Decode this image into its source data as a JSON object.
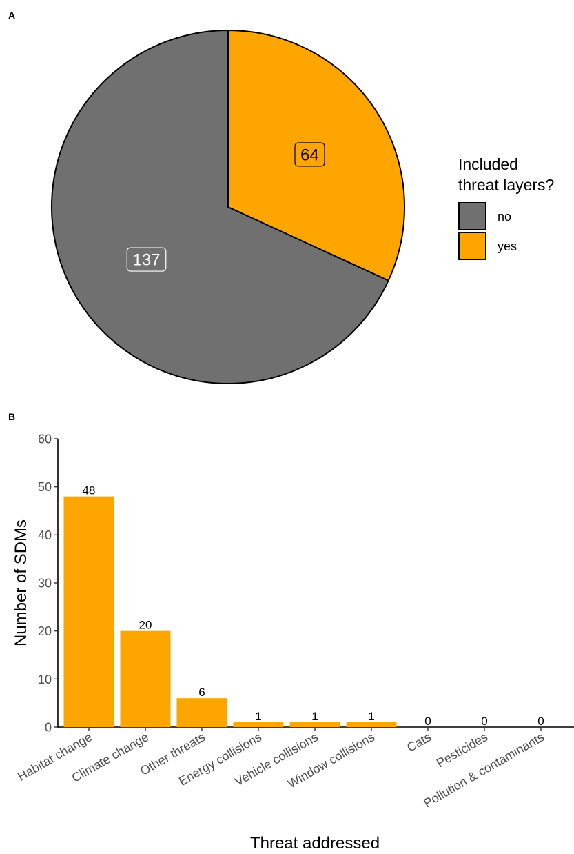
{
  "panel_a": {
    "tag": "A"
  },
  "panel_b": {
    "tag": "B"
  },
  "legend": {
    "title_line1": "Included",
    "title_line2": "threat layers?",
    "items": [
      {
        "label": "no",
        "color": "#707070"
      },
      {
        "label": "yes",
        "color": "#FFA500"
      }
    ]
  },
  "chart_data": [
    {
      "type": "pie",
      "title": "",
      "categories": [
        "no",
        "yes"
      ],
      "values": [
        137,
        64
      ],
      "colors": [
        "#707070",
        "#FFA500"
      ],
      "legend_title": "Included threat layers?",
      "legend_position": "right"
    },
    {
      "type": "bar",
      "title": "",
      "categories": [
        "Habitat change",
        "Climate change",
        "Other threats",
        "Energy collisions",
        "Vehicle collisions",
        "Window collisions",
        "Cats",
        "Pesticides",
        "Pollution & contaminants"
      ],
      "values": [
        48,
        20,
        6,
        1,
        1,
        1,
        0,
        0,
        0
      ],
      "color": "#FFA500",
      "xlabel": "Threat addressed",
      "ylabel": "Number of SDMs",
      "ylim": [
        0,
        60
      ],
      "yticks": [
        0,
        10,
        20,
        30,
        40,
        50,
        60
      ],
      "grid": false
    }
  ]
}
